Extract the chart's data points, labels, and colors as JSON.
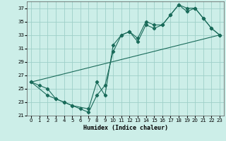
{
  "title": "",
  "xlabel": "Humidex (Indice chaleur)",
  "bg_color": "#cceee8",
  "line_color": "#1a6b5a",
  "grid_color": "#9ecfc8",
  "xlim": [
    -0.5,
    23.5
  ],
  "ylim": [
    21,
    38
  ],
  "yticks": [
    21,
    23,
    25,
    27,
    29,
    31,
    33,
    35,
    37
  ],
  "xticks": [
    0,
    1,
    2,
    3,
    4,
    5,
    6,
    7,
    8,
    9,
    10,
    11,
    12,
    13,
    14,
    15,
    16,
    17,
    18,
    19,
    20,
    21,
    22,
    23
  ],
  "line1_x": [
    0,
    1,
    2,
    3,
    4,
    5,
    6,
    7,
    8,
    9,
    10,
    11,
    12,
    13,
    14,
    15,
    16,
    17,
    18,
    19,
    20,
    21,
    22,
    23
  ],
  "line1_y": [
    26,
    25.5,
    25,
    23.5,
    23,
    22.5,
    22,
    21.5,
    24,
    25.5,
    30.5,
    33,
    33.5,
    32.5,
    35,
    34.5,
    34.5,
    36,
    37.5,
    37,
    37,
    35.5,
    34,
    33
  ],
  "line2_x": [
    0,
    2,
    3,
    4,
    5,
    7,
    8,
    9,
    10,
    11,
    12,
    13,
    14,
    15,
    16,
    17,
    18,
    19,
    20,
    21,
    22,
    23
  ],
  "line2_y": [
    26,
    24,
    23.5,
    23,
    22.5,
    22,
    26,
    24,
    31.5,
    33,
    33.5,
    32,
    34.5,
    34,
    34.5,
    36,
    37.5,
    36.5,
    37,
    35.5,
    34,
    33
  ],
  "line3_x": [
    0,
    23
  ],
  "line3_y": [
    26,
    33
  ]
}
